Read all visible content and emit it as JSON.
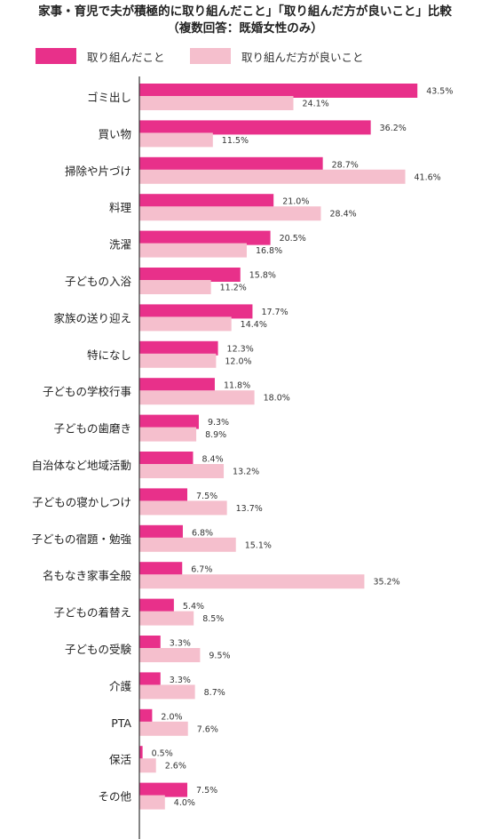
{
  "title": {
    "line1": "家事・育児で夫が積極的に取り組んだこと」「取り組んだ方が良いこと」比較",
    "line2": "（複数回答：既婚女性のみ）"
  },
  "colors": {
    "done": "#e8308a",
    "should": "#f5bfcd"
  },
  "chart_data": {
    "type": "bar",
    "orientation": "horizontal",
    "title": "家事・育児で夫が積極的に取り組んだこと」「取り組んだ方が良いこと」比較",
    "subtitle": "（複数回答：既婚女性のみ）",
    "unit": "%",
    "legend_position": "top-left",
    "grid": false,
    "xlim": [
      0,
      45
    ],
    "categories": [
      "ゴミ出し",
      "買い物",
      "掃除や片づけ",
      "料理",
      "洗濯",
      "子どもの入浴",
      "家族の送り迎え",
      "特になし",
      "子どもの学校行事",
      "子どもの歯磨き",
      "自治体など地域活動",
      "子どもの寝かしつけ",
      "子どもの宿題・勉強",
      "名もなき家事全般",
      "子どもの着替え",
      "子どもの受験",
      "介護",
      "PTA",
      "保活",
      "その他"
    ],
    "series": [
      {
        "name": "取り組んだこと",
        "color": "#e8308a",
        "values": [
          43.5,
          36.2,
          28.7,
          21.0,
          20.5,
          15.8,
          17.7,
          12.3,
          11.8,
          9.3,
          8.4,
          7.5,
          6.8,
          6.7,
          5.4,
          3.3,
          3.3,
          2.0,
          0.5,
          7.5
        ],
        "labels": [
          "43.5%",
          "36.2%",
          "28.7%",
          "21.0%",
          "20.5%",
          "15.8%",
          "17.7%",
          "12.3%",
          "11.8%",
          "9.3%",
          "8.4%",
          "7.5%",
          "6.8%",
          "6.7%",
          "5.4%",
          "3.3%",
          "3.3%",
          "2.0%",
          "0.5%",
          "7.5%"
        ]
      },
      {
        "name": "取り組んだ方が良いこと",
        "color": "#f5bfcd",
        "values": [
          24.1,
          11.5,
          41.6,
          28.4,
          16.8,
          11.2,
          14.4,
          12.0,
          18.0,
          8.9,
          13.2,
          13.7,
          15.1,
          35.2,
          8.5,
          9.5,
          8.7,
          7.6,
          2.6,
          4.0
        ],
        "labels": [
          "24.1%",
          "11.5%",
          "41.6%",
          "28.4%",
          "16.8%",
          "11.2%",
          "14.4%",
          "12.0%",
          "18.0%",
          "8.9%",
          "13.2%",
          "13.7%",
          "15.1%",
          "35.2%",
          "8.5%",
          "9.5%",
          "8.7%",
          "7.6%",
          "2.6%",
          "4.0%"
        ]
      }
    ]
  }
}
